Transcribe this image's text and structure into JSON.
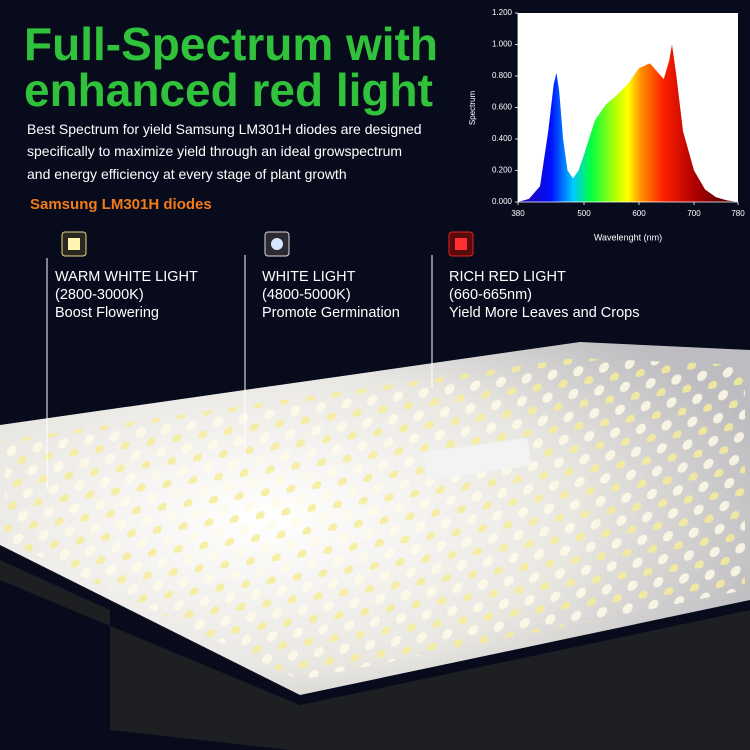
{
  "header": {
    "title_lines": [
      "Full-Spectrum with",
      "enhanced red light"
    ],
    "description_lines": [
      "Best Spectrum for yield Samsung LM301H diodes are designed",
      "specifically to maximize yield through an ideal growspectrum",
      "and energy efficiency at every stage of plant growth"
    ],
    "subtitle": "Samsung LM301H diodes"
  },
  "diodes": [
    {
      "name": "WARM WHITE LIGHT",
      "range": "(2800-3000K)",
      "benefit": "Boost Flowering"
    },
    {
      "name": "WHITE LIGHT",
      "range": "(4800-5000K)",
      "benefit": "Promote Germination"
    },
    {
      "name": "RICH RED LIGHT",
      "range": "(660-665nm)",
      "benefit": "Yield More Leaves and Crops"
    }
  ],
  "chart_data": {
    "type": "area",
    "xlabel": "Wavelenght (nm)",
    "ylabel": "Spectrum",
    "x": [
      380,
      400,
      420,
      435,
      445,
      450,
      455,
      462,
      470,
      480,
      490,
      500,
      520,
      540,
      560,
      580,
      600,
      620,
      635,
      645,
      655,
      660,
      668,
      680,
      700,
      720,
      740,
      760,
      780
    ],
    "values": [
      0,
      0.02,
      0.1,
      0.45,
      0.75,
      0.82,
      0.7,
      0.4,
      0.2,
      0.15,
      0.2,
      0.3,
      0.52,
      0.62,
      0.68,
      0.75,
      0.85,
      0.88,
      0.82,
      0.78,
      0.9,
      1.0,
      0.8,
      0.45,
      0.2,
      0.08,
      0.03,
      0.01,
      0
    ],
    "xlim": [
      380,
      780
    ],
    "ylim": [
      0,
      1.2
    ],
    "xticks": [
      380,
      500,
      600,
      700,
      780
    ],
    "yticks": [
      {
        "value": 0,
        "label": "0.000"
      },
      {
        "value": 0.2,
        "label": "0.200"
      },
      {
        "value": 0.4,
        "label": "0.400"
      },
      {
        "value": 0.6,
        "label": "0.600"
      },
      {
        "value": 0.8,
        "label": "0.800"
      },
      {
        "value": 1.0,
        "label": "1.000"
      },
      {
        "value": 1.2,
        "label": "1.200"
      }
    ]
  }
}
